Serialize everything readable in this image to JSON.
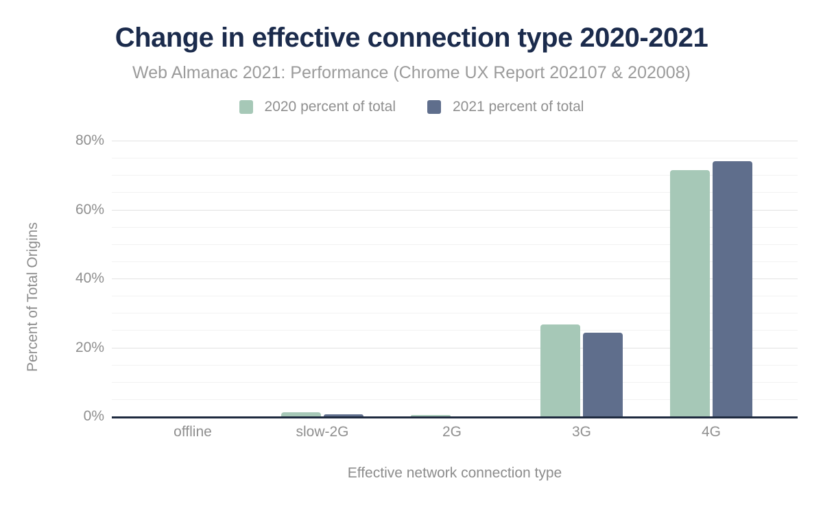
{
  "chart_data": {
    "type": "bar",
    "title": "Change in effective connection type 2020-2021",
    "subtitle": "Web Almanac 2021: Performance (Chrome UX Report 202107 & 202008)",
    "xlabel": "Effective network connection type",
    "ylabel": "Percent of Total Origins",
    "categories": [
      "offline",
      "slow-2G",
      "2G",
      "3G",
      "4G"
    ],
    "series": [
      {
        "name": "2020 percent of total",
        "color": "#a6c8b7",
        "values": [
          0,
          1.2,
          0.5,
          26.7,
          71.5
        ]
      },
      {
        "name": "2021 percent of total",
        "color": "#5f6e8c",
        "values": [
          0,
          0.6,
          0.1,
          24.2,
          74.1
        ]
      }
    ],
    "yticks": [
      {
        "value": 0,
        "label": "0%"
      },
      {
        "value": 20,
        "label": "20%"
      },
      {
        "value": 40,
        "label": "40%"
      },
      {
        "value": 60,
        "label": "60%"
      },
      {
        "value": 80,
        "label": "80%"
      }
    ],
    "ylim": [
      0,
      80
    ],
    "grid": "major 20%, minor 5%",
    "legend_position": "top",
    "axis_color": "#1e2a3f"
  }
}
